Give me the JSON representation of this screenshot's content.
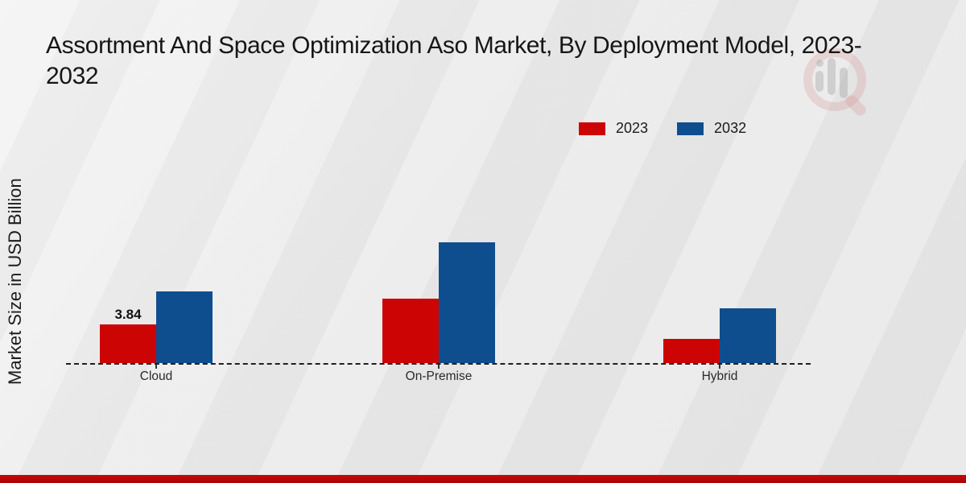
{
  "title": "Assortment And Space Optimization Aso Market, By Deployment Model, 2023-2032",
  "title_lines": [
    "Assortment And Space Optimization Aso Market, By Deployment Model, 2023-",
    "2032"
  ],
  "y_axis_label": "Market Size in USD Billion",
  "legend": {
    "items": [
      {
        "label": "2023",
        "color": "#cc0404"
      },
      {
        "label": "2032",
        "color": "#0f4e8e"
      }
    ]
  },
  "watermark": {
    "name": "magnifier-bar-chart-logo"
  },
  "footer": {
    "band_color": "#b80606"
  },
  "chart_data": {
    "type": "bar",
    "title": "Assortment And Space Optimization Aso Market, By Deployment Model, 2023-2032",
    "xlabel": "",
    "ylabel": "Market Size in USD Billion",
    "categories": [
      "Cloud",
      "On-Premise",
      "Hybrid"
    ],
    "series": [
      {
        "name": "2023",
        "color": "#cc0404",
        "values": [
          3.84,
          6.4,
          2.4
        ],
        "labels": [
          "3.84",
          "",
          ""
        ]
      },
      {
        "name": "2032",
        "color": "#0f4e8e",
        "values": [
          7.12,
          12.0,
          5.44
        ],
        "labels": [
          "",
          "",
          ""
        ]
      }
    ],
    "ylim": [
      0,
      13
    ],
    "grid": false,
    "legend_position": "top-right",
    "axis_style": "dashed-baseline-only",
    "annotations": [
      {
        "category": "Cloud",
        "series": "2023",
        "text": "3.84"
      }
    ]
  }
}
